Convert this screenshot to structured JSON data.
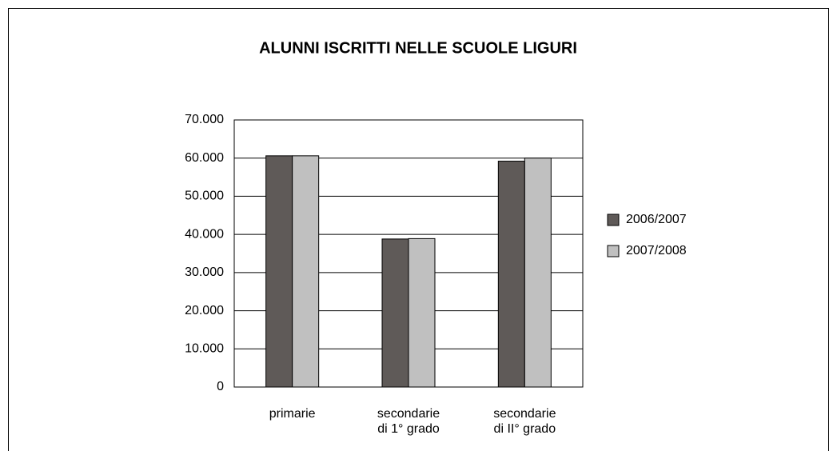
{
  "chart_data": {
    "type": "bar",
    "title": "ALUNNI ISCRITTI NELLE SCUOLE LIGURI",
    "categories": [
      "primarie",
      "secondarie\ndi 1° grado",
      "secondarie\ndi II° grado"
    ],
    "series": [
      {
        "name": "2006/2007",
        "color": "#5f5a58",
        "values": [
          60600,
          38800,
          59200
        ]
      },
      {
        "name": "2007/2008",
        "color": "#c0c0c0",
        "values": [
          60600,
          38900,
          60000
        ]
      }
    ],
    "ylim": [
      0,
      70000
    ],
    "yticks": [
      0,
      {
        "value": 10000,
        "label": "10.000"
      },
      {
        "value": 20000,
        "label": "20.000"
      },
      {
        "value": 30000,
        "label": "30.000"
      },
      {
        "value": 40000,
        "label": "40.000"
      },
      {
        "value": 50000,
        "label": "50.000"
      },
      {
        "value": 60000,
        "label": "60.000"
      },
      {
        "value": 70000,
        "label": "70.000"
      }
    ],
    "grid": true,
    "legend": "right"
  }
}
